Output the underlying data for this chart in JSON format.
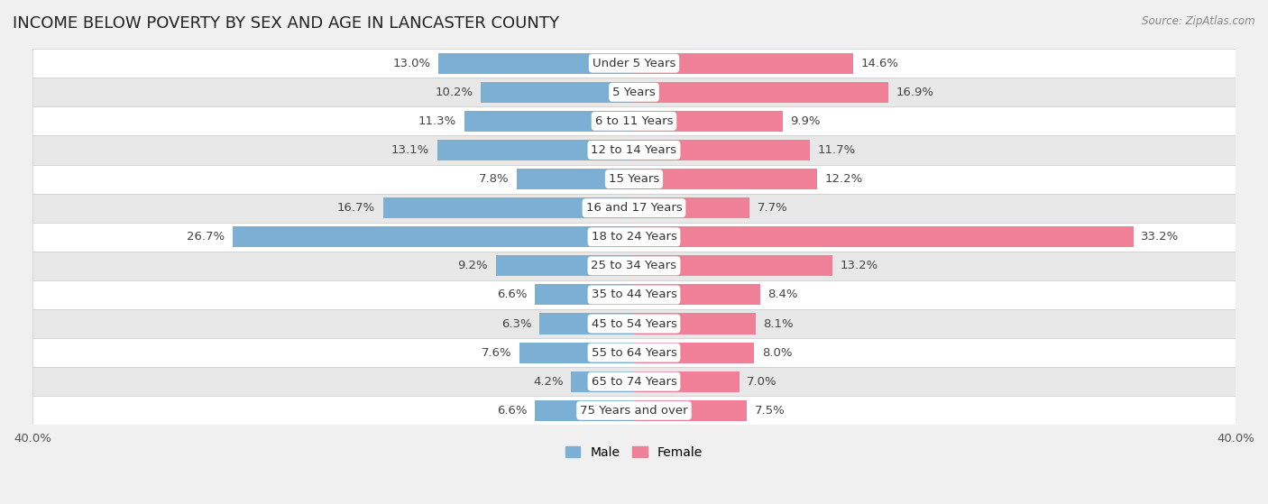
{
  "title": "INCOME BELOW POVERTY BY SEX AND AGE IN LANCASTER COUNTY",
  "source": "Source: ZipAtlas.com",
  "categories": [
    "Under 5 Years",
    "5 Years",
    "6 to 11 Years",
    "12 to 14 Years",
    "15 Years",
    "16 and 17 Years",
    "18 to 24 Years",
    "25 to 34 Years",
    "35 to 44 Years",
    "45 to 54 Years",
    "55 to 64 Years",
    "65 to 74 Years",
    "75 Years and over"
  ],
  "male": [
    13.0,
    10.2,
    11.3,
    13.1,
    7.8,
    16.7,
    26.7,
    9.2,
    6.6,
    6.3,
    7.6,
    4.2,
    6.6
  ],
  "female": [
    14.6,
    16.9,
    9.9,
    11.7,
    12.2,
    7.7,
    33.2,
    13.2,
    8.4,
    8.1,
    8.0,
    7.0,
    7.5
  ],
  "male_color": "#7bafd4",
  "female_color": "#f08098",
  "male_label": "Male",
  "female_label": "Female",
  "axis_limit": 40.0,
  "background_color": "#f0f0f0",
  "row_bg_light": "#ffffff",
  "row_bg_dark": "#e8e8e8",
  "title_fontsize": 13,
  "label_fontsize": 9.5,
  "tick_fontsize": 9.5,
  "source_fontsize": 8.5
}
